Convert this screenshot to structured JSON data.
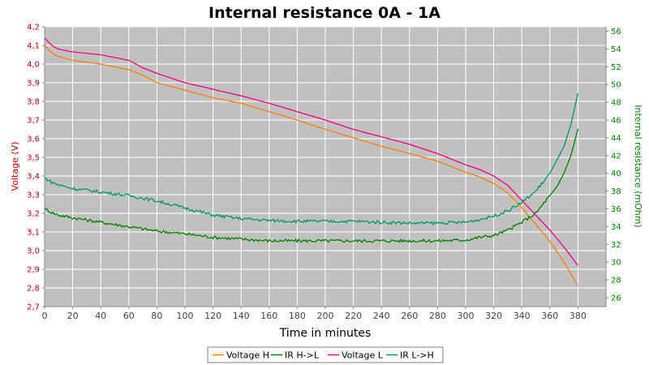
{
  "chart_data": {
    "type": "line",
    "title": "Internal resistance  0A - 1A",
    "xlabel": "Time in minutes",
    "ylabel_left": "Voltage (V)",
    "ylabel_right": "Internal resistance (mOhm)",
    "xlim": [
      0,
      400
    ],
    "ylim_left": [
      2.7,
      4.2
    ],
    "ylim_right": [
      25,
      56.5
    ],
    "x_ticks": [
      0,
      20,
      40,
      60,
      80,
      100,
      120,
      140,
      160,
      180,
      200,
      220,
      240,
      260,
      280,
      300,
      320,
      340,
      360,
      380
    ],
    "y_ticks_left": [
      "2,7",
      "2,8",
      "2,9",
      "3,0",
      "3,1",
      "3,2",
      "3,3",
      "3,4",
      "3,5",
      "3,6",
      "3,7",
      "3,8",
      "3,9",
      "4,0",
      "4,1",
      "4,2"
    ],
    "y_ticks_right": [
      26,
      28,
      30,
      32,
      34,
      36,
      38,
      40,
      42,
      44,
      46,
      48,
      50,
      52,
      54,
      56
    ],
    "grid": true,
    "plot_background": "#c0c0c0",
    "legend_position": "bottom",
    "series": [
      {
        "name": "Voltage H",
        "axis": "left",
        "color": "#ff8000",
        "points": [
          [
            0,
            4.1
          ],
          [
            5,
            4.06
          ],
          [
            10,
            4.04
          ],
          [
            20,
            4.02
          ],
          [
            40,
            4.0
          ],
          [
            60,
            3.97
          ],
          [
            70,
            3.94
          ],
          [
            80,
            3.9
          ],
          [
            100,
            3.86
          ],
          [
            120,
            3.82
          ],
          [
            140,
            3.79
          ],
          [
            160,
            3.745
          ],
          [
            180,
            3.7
          ],
          [
            200,
            3.65
          ],
          [
            220,
            3.605
          ],
          [
            240,
            3.56
          ],
          [
            260,
            3.52
          ],
          [
            280,
            3.48
          ],
          [
            300,
            3.42
          ],
          [
            310,
            3.395
          ],
          [
            320,
            3.36
          ],
          [
            330,
            3.31
          ],
          [
            340,
            3.23
          ],
          [
            350,
            3.14
          ],
          [
            360,
            3.05
          ],
          [
            370,
            2.94
          ],
          [
            380,
            2.81
          ]
        ]
      },
      {
        "name": "IR H->L",
        "axis": "right",
        "color": "#008000",
        "points": [
          [
            0,
            36.0
          ],
          [
            5,
            35.6
          ],
          [
            10,
            35.3
          ],
          [
            20,
            35.0
          ],
          [
            40,
            34.5
          ],
          [
            60,
            34.0
          ],
          [
            80,
            33.5
          ],
          [
            100,
            33.2
          ],
          [
            120,
            32.8
          ],
          [
            140,
            32.6
          ],
          [
            160,
            32.4
          ],
          [
            180,
            32.4
          ],
          [
            200,
            32.4
          ],
          [
            220,
            32.4
          ],
          [
            240,
            32.4
          ],
          [
            260,
            32.4
          ],
          [
            280,
            32.4
          ],
          [
            300,
            32.5
          ],
          [
            310,
            32.8
          ],
          [
            320,
            33.0
          ],
          [
            330,
            33.6
          ],
          [
            340,
            34.5
          ],
          [
            350,
            35.5
          ],
          [
            360,
            37.5
          ],
          [
            365,
            38.5
          ],
          [
            370,
            40.0
          ],
          [
            375,
            42.0
          ],
          [
            380,
            45.0
          ]
        ]
      },
      {
        "name": "Voltage L",
        "axis": "left",
        "color": "#ff0080",
        "points": [
          [
            0,
            4.14
          ],
          [
            5,
            4.1
          ],
          [
            10,
            4.08
          ],
          [
            20,
            4.065
          ],
          [
            40,
            4.05
          ],
          [
            60,
            4.02
          ],
          [
            70,
            3.98
          ],
          [
            80,
            3.95
          ],
          [
            100,
            3.9
          ],
          [
            120,
            3.865
          ],
          [
            140,
            3.83
          ],
          [
            160,
            3.79
          ],
          [
            180,
            3.745
          ],
          [
            200,
            3.7
          ],
          [
            220,
            3.65
          ],
          [
            240,
            3.61
          ],
          [
            260,
            3.57
          ],
          [
            280,
            3.52
          ],
          [
            300,
            3.46
          ],
          [
            310,
            3.435
          ],
          [
            320,
            3.4
          ],
          [
            330,
            3.35
          ],
          [
            340,
            3.27
          ],
          [
            350,
            3.19
          ],
          [
            360,
            3.11
          ],
          [
            370,
            3.02
          ],
          [
            380,
            2.92
          ]
        ]
      },
      {
        "name": "IR L->H",
        "axis": "right",
        "color": "#009966",
        "points": [
          [
            0,
            39.5
          ],
          [
            5,
            39.0
          ],
          [
            10,
            38.7
          ],
          [
            20,
            38.3
          ],
          [
            40,
            37.9
          ],
          [
            60,
            37.5
          ],
          [
            80,
            36.9
          ],
          [
            100,
            36.1
          ],
          [
            120,
            35.3
          ],
          [
            140,
            34.9
          ],
          [
            160,
            34.7
          ],
          [
            180,
            34.6
          ],
          [
            200,
            34.6
          ],
          [
            220,
            34.6
          ],
          [
            240,
            34.5
          ],
          [
            260,
            34.4
          ],
          [
            280,
            34.4
          ],
          [
            300,
            34.5
          ],
          [
            310,
            34.8
          ],
          [
            320,
            35.2
          ],
          [
            330,
            35.8
          ],
          [
            340,
            36.7
          ],
          [
            350,
            38.0
          ],
          [
            360,
            40.0
          ],
          [
            365,
            41.5
          ],
          [
            370,
            43.0
          ],
          [
            375,
            45.5
          ],
          [
            380,
            49.0
          ]
        ]
      }
    ]
  }
}
